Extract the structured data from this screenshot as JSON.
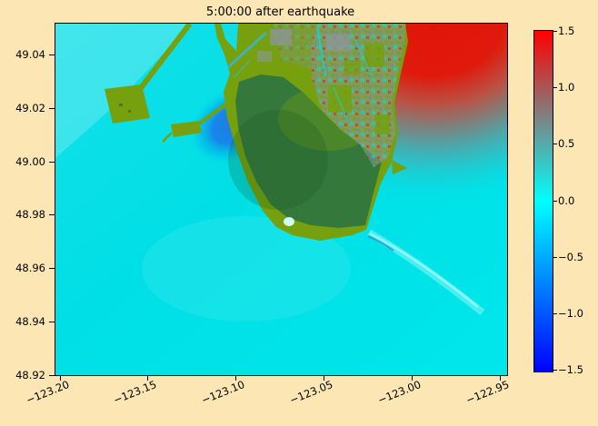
{
  "figure": {
    "title": "5:00:00 after earthquake",
    "background_color": "#fbe6b4"
  },
  "axes": {
    "x_tick_labels": [
      "−123.20",
      "−123.15",
      "−123.10",
      "−123.05",
      "−123.00",
      "−122.95"
    ],
    "y_tick_labels": [
      "49.04",
      "49.02",
      "49.00",
      "48.98",
      "48.96",
      "48.94",
      "48.92"
    ]
  },
  "colorbar": {
    "tick_labels": [
      "1.5",
      "1.0",
      "0.5",
      "0.0",
      "−0.5",
      "−1.0",
      "−1.5"
    ],
    "vmin": -1.5,
    "vmax": 1.5
  },
  "colors": {
    "background": "#fbe6b4",
    "water": "#00e2e7",
    "water_light": "#2cebf0",
    "land_low": "#76a00d",
    "land_high": "#35783c",
    "wave_positive": "#e01408",
    "wave_negative": "#1b7de8",
    "flooded_gray": "#8c969a",
    "pond": "#d2fdf4",
    "cb_top": "#ff0000",
    "cb_mid_high": "#808080",
    "cb_zero": "#00ffff",
    "cb_mid_low": "#0080ff",
    "cb_bottom": "#0000ff"
  },
  "chart_data": {
    "type": "heatmap",
    "title": "5:00:00 after earthquake",
    "xlabel": "",
    "ylabel": "",
    "x_ticks": [
      -123.2,
      -123.15,
      -123.1,
      -123.05,
      -123.0,
      -122.95
    ],
    "y_ticks": [
      49.04,
      49.02,
      49.0,
      48.98,
      48.96,
      48.94,
      48.92
    ],
    "xlim": [
      -123.203,
      -122.946
    ],
    "ylim": [
      48.92,
      49.052
    ],
    "grid": false,
    "legend_position": "colorbar-right",
    "colorbar": {
      "vmin": -1.5,
      "vmax": 1.5,
      "ticks": [
        1.5,
        1.0,
        0.5,
        0.0,
        -0.5,
        -1.0,
        -1.5
      ],
      "colormap_stops": [
        {
          "value": 1.5,
          "color": "#ff0000"
        },
        {
          "value": 0.75,
          "color": "#808080"
        },
        {
          "value": 0.0,
          "color": "#00ffff"
        },
        {
          "value": -0.75,
          "color": "#0080ff"
        },
        {
          "value": -1.5,
          "color": "#0000ff"
        }
      ]
    },
    "regions": [
      {
        "name": "open-water",
        "approx_value": 0.0,
        "color": "#00e2e7",
        "extent": "most of the domain"
      },
      {
        "name": "positive-wave-northeast",
        "approx_value": 1.5,
        "color": "#e01408",
        "extent": "upper-right bay near lon -123.02, lat 49.05, fading to teal toward southeast"
      },
      {
        "name": "negative-wave-near-jetties",
        "approx_value": -0.9,
        "color": "#1b7de8",
        "extent": "pocket near lon -123.14, lat 49.015 between the two jetties"
      },
      {
        "name": "delta-lowland",
        "approx_value": "low land elevation",
        "color": "#76a00d",
        "extent": "peninsula and top band of domain"
      },
      {
        "name": "upland-interior",
        "approx_value": "higher land elevation",
        "color": "#35783c",
        "extent": "large dark-green interior of the peninsula"
      },
      {
        "name": "flooded-urban-patchwork",
        "approx_value": "mixed ±",
        "color": "speckled gray/red/cyan/olive",
        "extent": "northeast part of the land near the red wave"
      },
      {
        "name": "port-terminal-jetty",
        "color": "#76a00d",
        "extent": "long diagonal jetty with rectangular terminal, upper left"
      },
      {
        "name": "ferry-terminal-jetty",
        "color": "#76a00d",
        "extent": "shorter jetty below the port jetty"
      },
      {
        "name": "small-pond",
        "color": "#d2fdf4",
        "extent": "tiny pond near the south tip of the peninsula"
      },
      {
        "name": "wake-trail",
        "approx_value": 0.1,
        "color": "pale cyan streak",
        "extent": "diagonal trail from peninsula tip toward lower right"
      }
    ]
  }
}
